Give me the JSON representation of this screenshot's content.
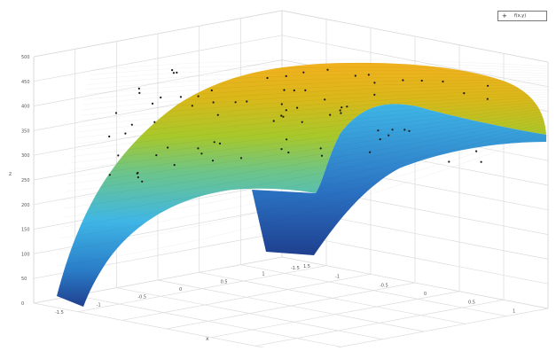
{
  "chart_data": {
    "type": "surface",
    "title": "",
    "xlabel": "x",
    "ylabel": "",
    "zlabel": "z",
    "grid": true,
    "legend": {
      "placement": "top-right",
      "entries": [
        {
          "marker": "+",
          "label": "f(x,y)"
        }
      ]
    },
    "x_ticks": [
      "-1.5",
      "-1",
      "-0.5",
      "0",
      "0.5",
      "1",
      "1.5"
    ],
    "y_ticks": [
      "-1.5",
      "-1",
      "-0.5",
      "0",
      "0.5",
      "1",
      "1.5"
    ],
    "z_ticks": [
      "0",
      "50",
      "100",
      "150",
      "200",
      "250",
      "300",
      "350",
      "400",
      "450",
      "500"
    ],
    "xlim": [
      -1.5,
      1.5
    ],
    "ylim": [
      -1.5,
      1.5
    ],
    "zlim": [
      0,
      500
    ],
    "colormap": [
      "#1f3f8f",
      "#2a7dc8",
      "#3fb6e6",
      "#6cc58a",
      "#a8c82a",
      "#d9b81a",
      "#f2b11e"
    ],
    "surface_description": "dome-shaped surface with a cut-out notch at the front-right; peak near z=480"
  }
}
